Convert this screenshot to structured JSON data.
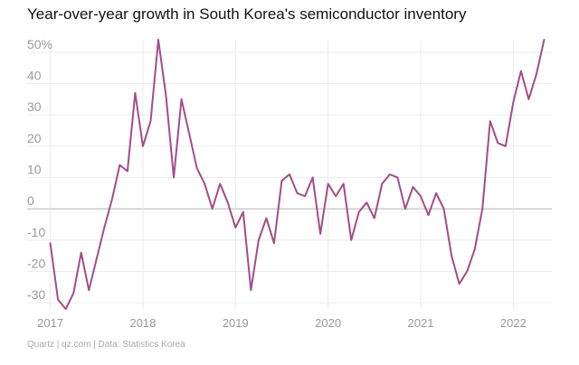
{
  "chart_data": {
    "type": "line",
    "title": "Year-over-year growth in South Korea's semiconductor inventory",
    "xlabel": "",
    "ylabel": "",
    "source": "Quartz | qz.com | Data: Statistics Korea",
    "x_ticks": [
      "2017",
      "2018",
      "2019",
      "2020",
      "2021",
      "2022"
    ],
    "y_ticks": [
      {
        "value": 50,
        "label": "50%"
      },
      {
        "value": 40,
        "label": "40"
      },
      {
        "value": 30,
        "label": "30"
      },
      {
        "value": 20,
        "label": "20"
      },
      {
        "value": 10,
        "label": "10"
      },
      {
        "value": 0,
        "label": "0"
      },
      {
        "value": -10,
        "label": "-10"
      },
      {
        "value": -20,
        "label": "-20"
      },
      {
        "value": -30,
        "label": "-30"
      }
    ],
    "ylim": [
      -32,
      54
    ],
    "xlim": [
      "2016-10",
      "2022-06"
    ],
    "grid": true,
    "legend": "none",
    "colors": {
      "line": "#a34d85",
      "grid": "#ececec",
      "zero_line": "#b0b0b0",
      "tick_text": "#9a9a9a"
    },
    "series": [
      {
        "values": [
          {
            "x": "2017-01",
            "y": -11
          },
          {
            "x": "2017-02",
            "y": -29
          },
          {
            "x": "2017-03",
            "y": -32
          },
          {
            "x": "2017-04",
            "y": -27
          },
          {
            "x": "2017-05",
            "y": -14
          },
          {
            "x": "2017-06",
            "y": -26
          },
          {
            "x": "2017-07",
            "y": -16
          },
          {
            "x": "2017-08",
            "y": -6
          },
          {
            "x": "2017-09",
            "y": 3
          },
          {
            "x": "2017-10",
            "y": 14
          },
          {
            "x": "2017-11",
            "y": 12
          },
          {
            "x": "2017-12",
            "y": 37
          },
          {
            "x": "2018-01",
            "y": 20
          },
          {
            "x": "2018-02",
            "y": 28
          },
          {
            "x": "2018-03",
            "y": 54
          },
          {
            "x": "2018-04",
            "y": 36
          },
          {
            "x": "2018-05",
            "y": 10
          },
          {
            "x": "2018-06",
            "y": 35
          },
          {
            "x": "2018-07",
            "y": 24
          },
          {
            "x": "2018-08",
            "y": 13
          },
          {
            "x": "2018-09",
            "y": 8
          },
          {
            "x": "2018-10",
            "y": 0
          },
          {
            "x": "2018-11",
            "y": 8
          },
          {
            "x": "2018-12",
            "y": 2
          },
          {
            "x": "2019-01",
            "y": -6
          },
          {
            "x": "2019-02",
            "y": -1
          },
          {
            "x": "2019-03",
            "y": -26
          },
          {
            "x": "2019-04",
            "y": -10
          },
          {
            "x": "2019-05",
            "y": -3
          },
          {
            "x": "2019-06",
            "y": -11
          },
          {
            "x": "2019-07",
            "y": 9
          },
          {
            "x": "2019-08",
            "y": 11
          },
          {
            "x": "2019-09",
            "y": 5
          },
          {
            "x": "2019-10",
            "y": 4
          },
          {
            "x": "2019-11",
            "y": 10
          },
          {
            "x": "2019-12",
            "y": -8
          },
          {
            "x": "2020-01",
            "y": 8
          },
          {
            "x": "2020-02",
            "y": 4
          },
          {
            "x": "2020-03",
            "y": 8
          },
          {
            "x": "2020-04",
            "y": -10
          },
          {
            "x": "2020-05",
            "y": -1
          },
          {
            "x": "2020-06",
            "y": 2
          },
          {
            "x": "2020-07",
            "y": -3
          },
          {
            "x": "2020-08",
            "y": 8
          },
          {
            "x": "2020-09",
            "y": 11
          },
          {
            "x": "2020-10",
            "y": 10
          },
          {
            "x": "2020-11",
            "y": 0
          },
          {
            "x": "2020-12",
            "y": 7
          },
          {
            "x": "2021-01",
            "y": 4
          },
          {
            "x": "2021-02",
            "y": -2
          },
          {
            "x": "2021-03",
            "y": 5
          },
          {
            "x": "2021-04",
            "y": 0
          },
          {
            "x": "2021-05",
            "y": -15
          },
          {
            "x": "2021-06",
            "y": -24
          },
          {
            "x": "2021-07",
            "y": -20
          },
          {
            "x": "2021-08",
            "y": -13
          },
          {
            "x": "2021-09",
            "y": 0
          },
          {
            "x": "2021-10",
            "y": 28
          },
          {
            "x": "2021-11",
            "y": 21
          },
          {
            "x": "2021-12",
            "y": 20
          },
          {
            "x": "2022-01",
            "y": 34
          },
          {
            "x": "2022-02",
            "y": 44
          },
          {
            "x": "2022-03",
            "y": 35
          },
          {
            "x": "2022-04",
            "y": 43
          },
          {
            "x": "2022-05",
            "y": 54
          }
        ]
      }
    ]
  }
}
